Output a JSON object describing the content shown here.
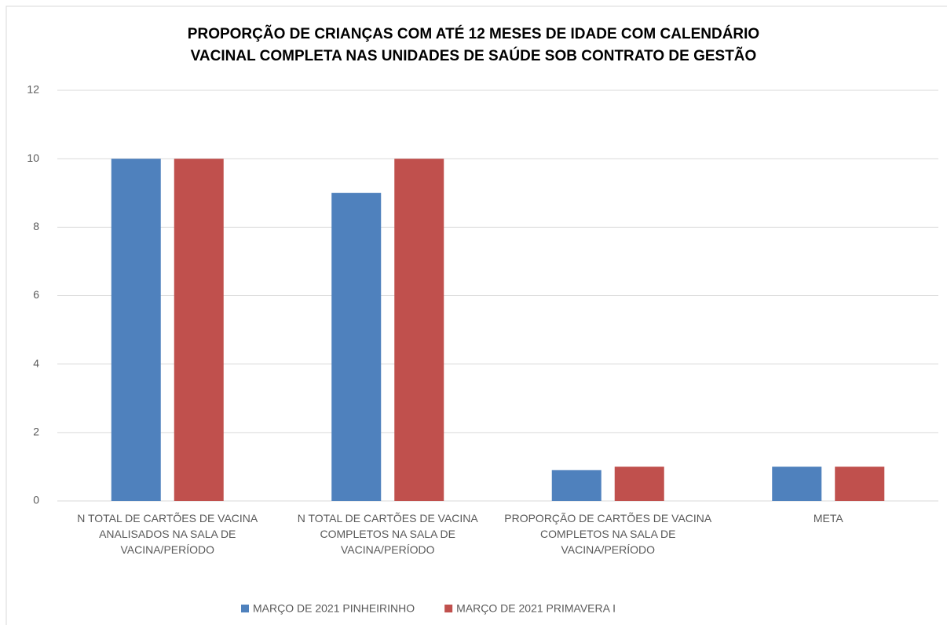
{
  "chart_data": {
    "type": "bar",
    "title": "PROPORÇÃO DE CRIANÇAS COM ATÉ 12 MESES DE IDADE COM CALENDÁRIO\nVACINAL COMPLETA NAS UNIDADES DE SAÚDE SOB CONTRATO  DE GESTÃO",
    "categories": [
      "N TOTAL DE CARTÕES DE VACINA ANALISADOS NA SALA DE VACINA/PERÍODO",
      "N TOTAL DE CARTÕES DE VACINA COMPLETOS NA SALA DE VACINA/PERÍODO",
      "PROPORÇÃO DE CARTÕES DE VACINA COMPLETOS NA SALA DE VACINA/PERÍODO",
      "META"
    ],
    "series": [
      {
        "name": "MARÇO DE 2021 PINHEIRINHO",
        "color": "#4f81bd",
        "values": [
          10,
          9,
          0.9,
          1
        ]
      },
      {
        "name": "MARÇO DE 2021 PRIMAVERA I",
        "color": "#c0504d",
        "values": [
          10,
          10,
          1,
          1
        ]
      }
    ],
    "ylim": [
      0,
      12
    ],
    "yticks": [
      0,
      2,
      4,
      6,
      8,
      10,
      12
    ],
    "grid": true,
    "legend": "bottom"
  }
}
